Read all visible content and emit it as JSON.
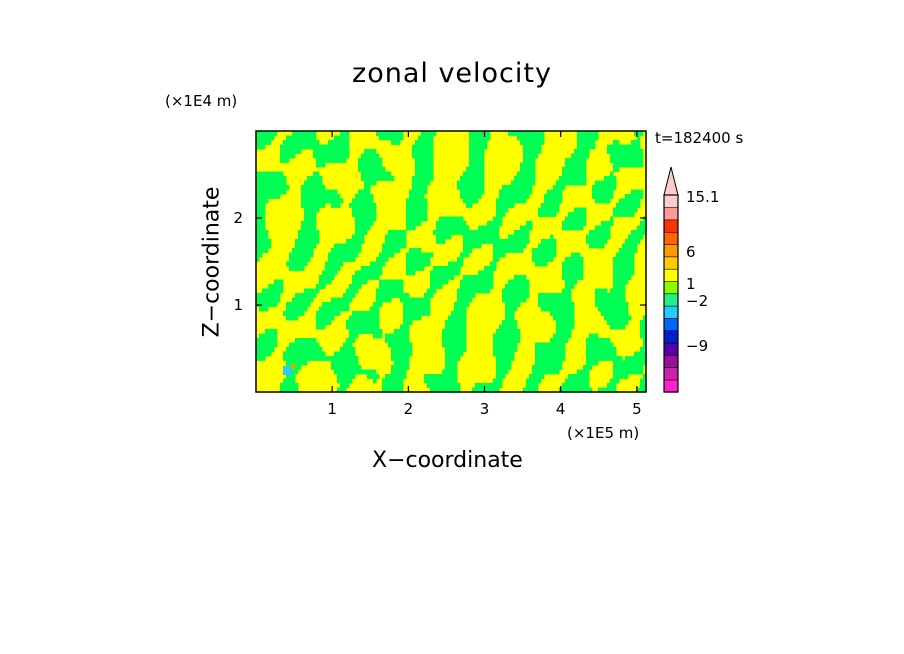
{
  "chart_data": {
    "type": "heatmap",
    "title": "zonal velocity",
    "xlabel": "X−coordinate",
    "ylabel": "Z−coordinate",
    "x_unit": "(×1E5 m)",
    "y_unit": "(×1E4 m)",
    "time_label": "t=182400 s",
    "xlim": [
      0,
      5.12
    ],
    "ylim": [
      0,
      3.0
    ],
    "x_ticks": [
      "1",
      "2",
      "3",
      "4",
      "5"
    ],
    "y_ticks": [
      "1",
      "2"
    ],
    "colorbar": {
      "labels": [
        "15.1",
        "6",
        "1",
        "−2",
        "−9"
      ],
      "colors": [
        "#ff22cc",
        "#cc22aa",
        "#991199",
        "#5500aa",
        "#0022cc",
        "#0066ff",
        "#22ccff",
        "#22ee88",
        "#88ff00",
        "#ffff00",
        "#ffcc00",
        "#ff9900",
        "#ff6600",
        "#ff3300",
        "#ff9999",
        "#ffcccc"
      ]
    },
    "dominant_colors": [
      "#00ff55",
      "#ffff00"
    ]
  }
}
